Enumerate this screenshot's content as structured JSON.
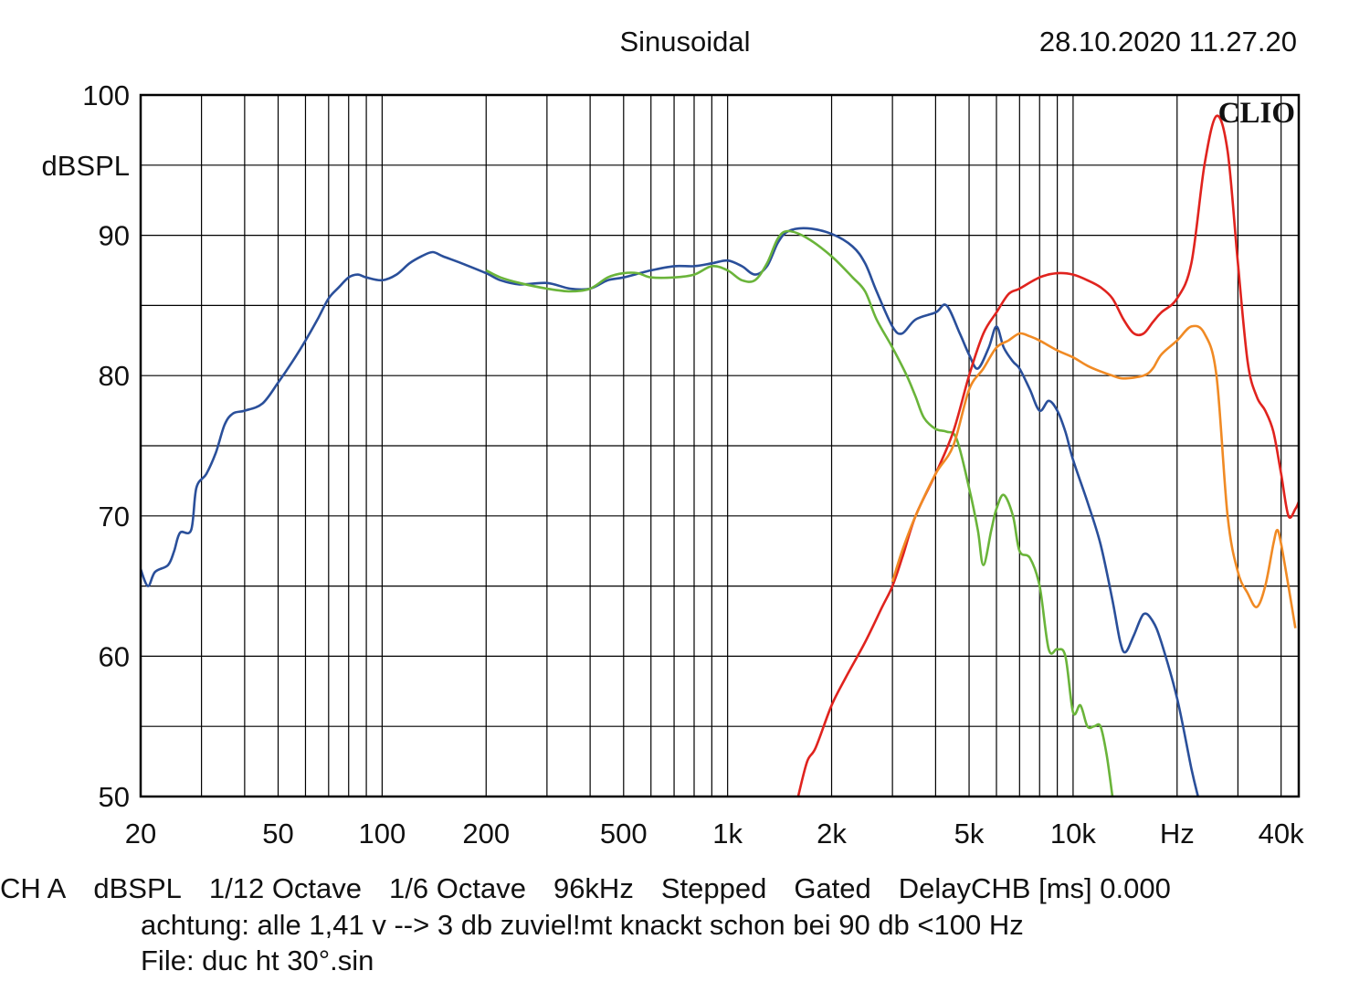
{
  "header": {
    "title": "Sinusoidal",
    "datetime": "28.10.2020 11.27.20",
    "brand": "CLIO"
  },
  "footer": {
    "channel": "CH A",
    "unit": "dBSPL",
    "smoothing1": "1/12 Octave",
    "smoothing2": "1/6 Octave",
    "rate": "96kHz",
    "mode": "Stepped",
    "window": "Gated",
    "delay": "DelayCHB [ms] 0.000",
    "note": "achtung: alle 1,41 v --> 3 db zuviel!mt knackt schon bei 90 db <100 Hz",
    "file": "File: duc ht 30°.sin"
  },
  "colors": {
    "blue": "#2a4f9a",
    "green": "#6ab43a",
    "red": "#e0231e",
    "orange": "#f08a24",
    "grid": "#000000"
  },
  "chart_data": {
    "type": "line",
    "xscale": "log",
    "xlim": [
      20,
      45000
    ],
    "ylim": [
      50,
      100
    ],
    "ylabel": "dBSPL",
    "y_ticks": [
      50,
      60,
      70,
      80,
      90,
      100
    ],
    "x_tick_labels": [
      {
        "x": 20,
        "label": "20"
      },
      {
        "x": 50,
        "label": "50"
      },
      {
        "x": 100,
        "label": "100"
      },
      {
        "x": 200,
        "label": "200"
      },
      {
        "x": 500,
        "label": "500"
      },
      {
        "x": 1000,
        "label": "1k"
      },
      {
        "x": 2000,
        "label": "2k"
      },
      {
        "x": 5000,
        "label": "5k"
      },
      {
        "x": 10000,
        "label": "10k"
      },
      {
        "x": 20000,
        "label": "Hz"
      },
      {
        "x": 40000,
        "label": "40k"
      }
    ],
    "grid": true,
    "series": [
      {
        "color": "#2a4f9a",
        "points": [
          [
            20,
            66.2
          ],
          [
            21,
            65
          ],
          [
            22,
            66
          ],
          [
            24,
            66.5
          ],
          [
            25,
            67.5
          ],
          [
            26,
            68.8
          ],
          [
            28,
            69
          ],
          [
            29,
            72
          ],
          [
            31,
            73
          ],
          [
            33,
            74.5
          ],
          [
            35,
            76.5
          ],
          [
            37,
            77.3
          ],
          [
            40,
            77.5
          ],
          [
            45,
            78
          ],
          [
            50,
            79.5
          ],
          [
            55,
            81
          ],
          [
            60,
            82.5
          ],
          [
            65,
            84
          ],
          [
            70,
            85.5
          ],
          [
            75,
            86.3
          ],
          [
            80,
            87
          ],
          [
            85,
            87.2
          ],
          [
            90,
            87
          ],
          [
            100,
            86.8
          ],
          [
            110,
            87.2
          ],
          [
            120,
            88
          ],
          [
            130,
            88.5
          ],
          [
            140,
            88.8
          ],
          [
            150,
            88.5
          ],
          [
            170,
            88
          ],
          [
            200,
            87.3
          ],
          [
            220,
            86.8
          ],
          [
            250,
            86.5
          ],
          [
            300,
            86.6
          ],
          [
            350,
            86.2
          ],
          [
            400,
            86.2
          ],
          [
            450,
            86.8
          ],
          [
            500,
            87
          ],
          [
            600,
            87.5
          ],
          [
            700,
            87.8
          ],
          [
            800,
            87.8
          ],
          [
            900,
            88
          ],
          [
            1000,
            88.2
          ],
          [
            1100,
            87.8
          ],
          [
            1200,
            87.2
          ],
          [
            1300,
            87.8
          ],
          [
            1400,
            89.5
          ],
          [
            1500,
            90.3
          ],
          [
            1700,
            90.5
          ],
          [
            2000,
            90.1
          ],
          [
            2300,
            89.2
          ],
          [
            2500,
            88
          ],
          [
            2700,
            86
          ],
          [
            3000,
            83.5
          ],
          [
            3200,
            83
          ],
          [
            3500,
            84
          ],
          [
            4000,
            84.5
          ],
          [
            4300,
            85
          ],
          [
            4700,
            83
          ],
          [
            5000,
            81.5
          ],
          [
            5300,
            80.5
          ],
          [
            5700,
            82
          ],
          [
            6000,
            83.5
          ],
          [
            6300,
            82
          ],
          [
            6700,
            81
          ],
          [
            7000,
            80.5
          ],
          [
            7500,
            79
          ],
          [
            8000,
            77.5
          ],
          [
            8500,
            78.2
          ],
          [
            9000,
            77.5
          ],
          [
            9500,
            76
          ],
          [
            10000,
            74
          ],
          [
            11000,
            71
          ],
          [
            12000,
            68
          ],
          [
            13000,
            64
          ],
          [
            13700,
            61
          ],
          [
            14200,
            60.3
          ],
          [
            15000,
            61.5
          ],
          [
            16000,
            63
          ],
          [
            17000,
            62.5
          ],
          [
            18000,
            61
          ],
          [
            20000,
            57
          ],
          [
            22000,
            52
          ],
          [
            23000,
            50
          ]
        ]
      },
      {
        "color": "#6ab43a",
        "points": [
          [
            200,
            87.5
          ],
          [
            220,
            87
          ],
          [
            250,
            86.6
          ],
          [
            300,
            86.2
          ],
          [
            350,
            86
          ],
          [
            400,
            86.2
          ],
          [
            450,
            87
          ],
          [
            500,
            87.3
          ],
          [
            550,
            87.3
          ],
          [
            600,
            87
          ],
          [
            700,
            87
          ],
          [
            800,
            87.2
          ],
          [
            900,
            87.8
          ],
          [
            1000,
            87.5
          ],
          [
            1100,
            86.8
          ],
          [
            1200,
            86.8
          ],
          [
            1300,
            88
          ],
          [
            1400,
            89.8
          ],
          [
            1500,
            90.3
          ],
          [
            1700,
            89.8
          ],
          [
            2000,
            88.5
          ],
          [
            2300,
            87
          ],
          [
            2500,
            86
          ],
          [
            2700,
            84
          ],
          [
            3000,
            82
          ],
          [
            3300,
            80
          ],
          [
            3500,
            78.5
          ],
          [
            3700,
            77
          ],
          [
            4000,
            76.2
          ],
          [
            4300,
            76
          ],
          [
            4600,
            75.5
          ],
          [
            5000,
            72
          ],
          [
            5300,
            69
          ],
          [
            5500,
            66.5
          ],
          [
            5800,
            69
          ],
          [
            6000,
            70.5
          ],
          [
            6300,
            71.5
          ],
          [
            6700,
            70
          ],
          [
            7000,
            67.5
          ],
          [
            7500,
            67
          ],
          [
            8000,
            65
          ],
          [
            8500,
            60.5
          ],
          [
            9000,
            60.5
          ],
          [
            9500,
            60
          ],
          [
            10000,
            56
          ],
          [
            10500,
            56.5
          ],
          [
            11000,
            55
          ],
          [
            11500,
            55
          ],
          [
            12000,
            55
          ],
          [
            12500,
            53
          ],
          [
            13000,
            50
          ]
        ]
      },
      {
        "color": "#e0231e",
        "points": [
          [
            1600,
            50
          ],
          [
            1700,
            52.5
          ],
          [
            1800,
            53.5
          ],
          [
            2000,
            56.5
          ],
          [
            2200,
            58.5
          ],
          [
            2500,
            61
          ],
          [
            2800,
            63.5
          ],
          [
            3000,
            65
          ],
          [
            3200,
            67
          ],
          [
            3500,
            70
          ],
          [
            4000,
            73
          ],
          [
            4500,
            76
          ],
          [
            5000,
            80
          ],
          [
            5500,
            83
          ],
          [
            6000,
            84.5
          ],
          [
            6500,
            85.8
          ],
          [
            7000,
            86.2
          ],
          [
            8000,
            87
          ],
          [
            9000,
            87.3
          ],
          [
            10000,
            87.2
          ],
          [
            11000,
            86.8
          ],
          [
            12000,
            86.3
          ],
          [
            13000,
            85.5
          ],
          [
            14000,
            84
          ],
          [
            15000,
            83
          ],
          [
            16000,
            83
          ],
          [
            17000,
            83.8
          ],
          [
            18000,
            84.5
          ],
          [
            20000,
            85.5
          ],
          [
            22000,
            88
          ],
          [
            24000,
            95
          ],
          [
            26000,
            98.5
          ],
          [
            28000,
            96
          ],
          [
            30000,
            88
          ],
          [
            32000,
            81
          ],
          [
            34000,
            78.5
          ],
          [
            36000,
            77.5
          ],
          [
            38000,
            76
          ],
          [
            40000,
            73
          ],
          [
            42000,
            70
          ],
          [
            44000,
            70.5
          ],
          [
            45000,
            71
          ]
        ]
      },
      {
        "color": "#f08a24",
        "points": [
          [
            3000,
            65.3
          ],
          [
            3200,
            67.5
          ],
          [
            3500,
            70
          ],
          [
            4000,
            73
          ],
          [
            4500,
            75
          ],
          [
            5000,
            79
          ],
          [
            5500,
            80.5
          ],
          [
            6000,
            82
          ],
          [
            6500,
            82.5
          ],
          [
            7000,
            83
          ],
          [
            7500,
            82.8
          ],
          [
            8000,
            82.5
          ],
          [
            9000,
            81.8
          ],
          [
            10000,
            81.3
          ],
          [
            11000,
            80.7
          ],
          [
            12000,
            80.3
          ],
          [
            13000,
            80
          ],
          [
            14000,
            79.8
          ],
          [
            16000,
            80
          ],
          [
            17000,
            80.5
          ],
          [
            18000,
            81.5
          ],
          [
            20000,
            82.5
          ],
          [
            22000,
            83.5
          ],
          [
            24000,
            83
          ],
          [
            26000,
            80
          ],
          [
            28000,
            70
          ],
          [
            30000,
            66
          ],
          [
            32000,
            64.5
          ],
          [
            34000,
            63.5
          ],
          [
            36000,
            65
          ],
          [
            38000,
            68
          ],
          [
            39000,
            69
          ],
          [
            40000,
            68
          ],
          [
            42000,
            65
          ],
          [
            44000,
            62
          ]
        ]
      }
    ]
  }
}
